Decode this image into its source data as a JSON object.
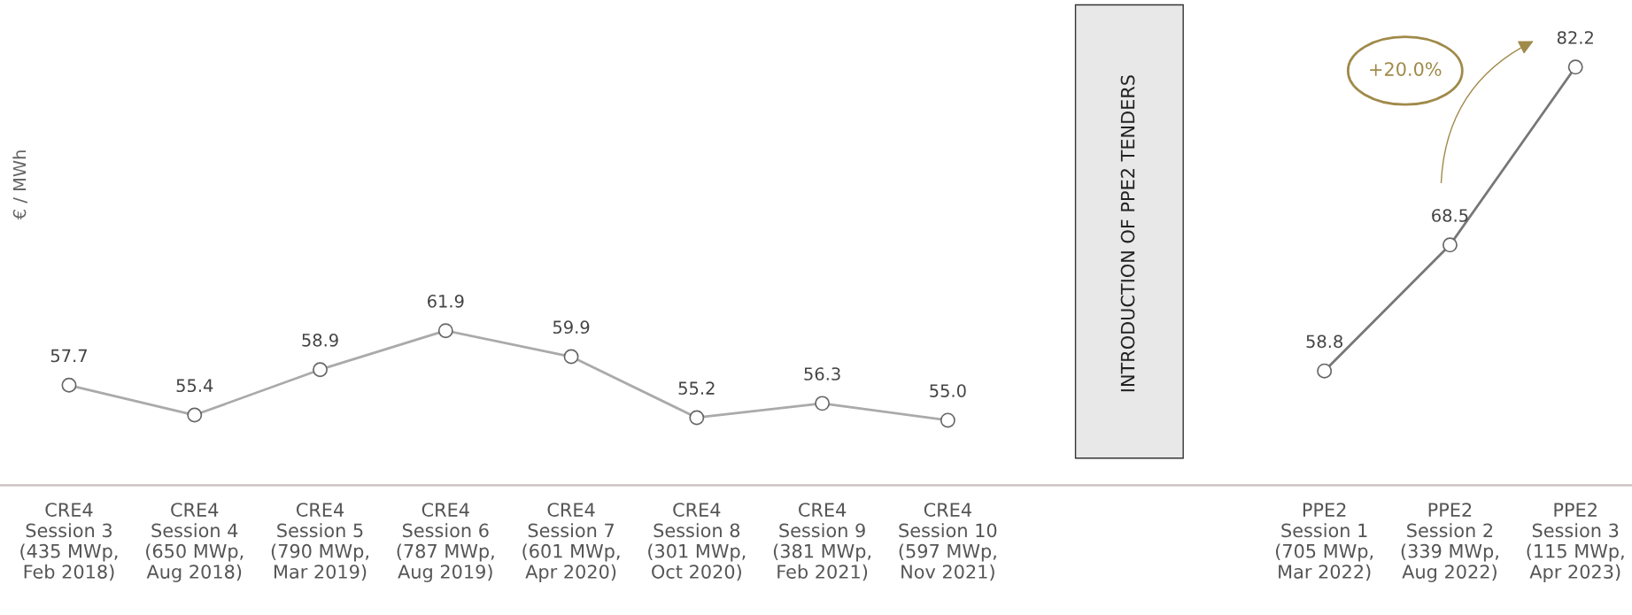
{
  "chart_data": {
    "type": "line",
    "ylabel": "€ / MWh",
    "categories": [
      "CRE4\nSession 3\n(435 MWp,\nFeb 2018)",
      "CRE4\nSession 4\n(650 MWp,\nAug 2018)",
      "CRE4\nSession 5\n(790 MWp,\nMar 2019)",
      "CRE4\nSession 6\n(787 MWp,\nAug 2019)",
      "CRE4\nSession 7\n(601 MWp,\nApr 2020)",
      "CRE4\nSession 8\n(301 MWp,\nOct 2020)",
      "CRE4\nSession 9\n(381 MWp,\nFeb 2021)",
      "CRE4\nSession 10\n(597 MWp,\nNov 2021)",
      null,
      null,
      "PPE2\nSession 1\n(705 MWp,\nMar 2022)",
      "PPE2\nSession 2\n(339 MWp,\nAug 2022)",
      "PPE2\nSession 3\n(115 MWp,\nApr 2023)"
    ],
    "series": [
      {
        "color": "#aaaaaa",
        "values": [
          57.7,
          55.4,
          58.9,
          61.9,
          59.9,
          55.2,
          56.3,
          55.0,
          null,
          null,
          null,
          null,
          null
        ],
        "value_labels": [
          "57.7",
          "55.4",
          "58.9",
          "61.9",
          "59.9",
          "55.2",
          "56.3",
          "55.0",
          null,
          null,
          null,
          null,
          null
        ]
      },
      {
        "color": "#777777",
        "values": [
          null,
          null,
          null,
          null,
          null,
          null,
          null,
          null,
          null,
          null,
          58.8,
          68.5,
          82.2
        ],
        "value_labels": [
          null,
          null,
          null,
          null,
          null,
          null,
          null,
          null,
          null,
          null,
          "58.8",
          "68.5",
          "82.2"
        ]
      }
    ],
    "annotations": [
      "INTRODUCTION OF PPE2 TENDERS",
      "+20.0%"
    ],
    "marker": "circle",
    "line_style": "solid",
    "grid": false,
    "legend": false
  }
}
